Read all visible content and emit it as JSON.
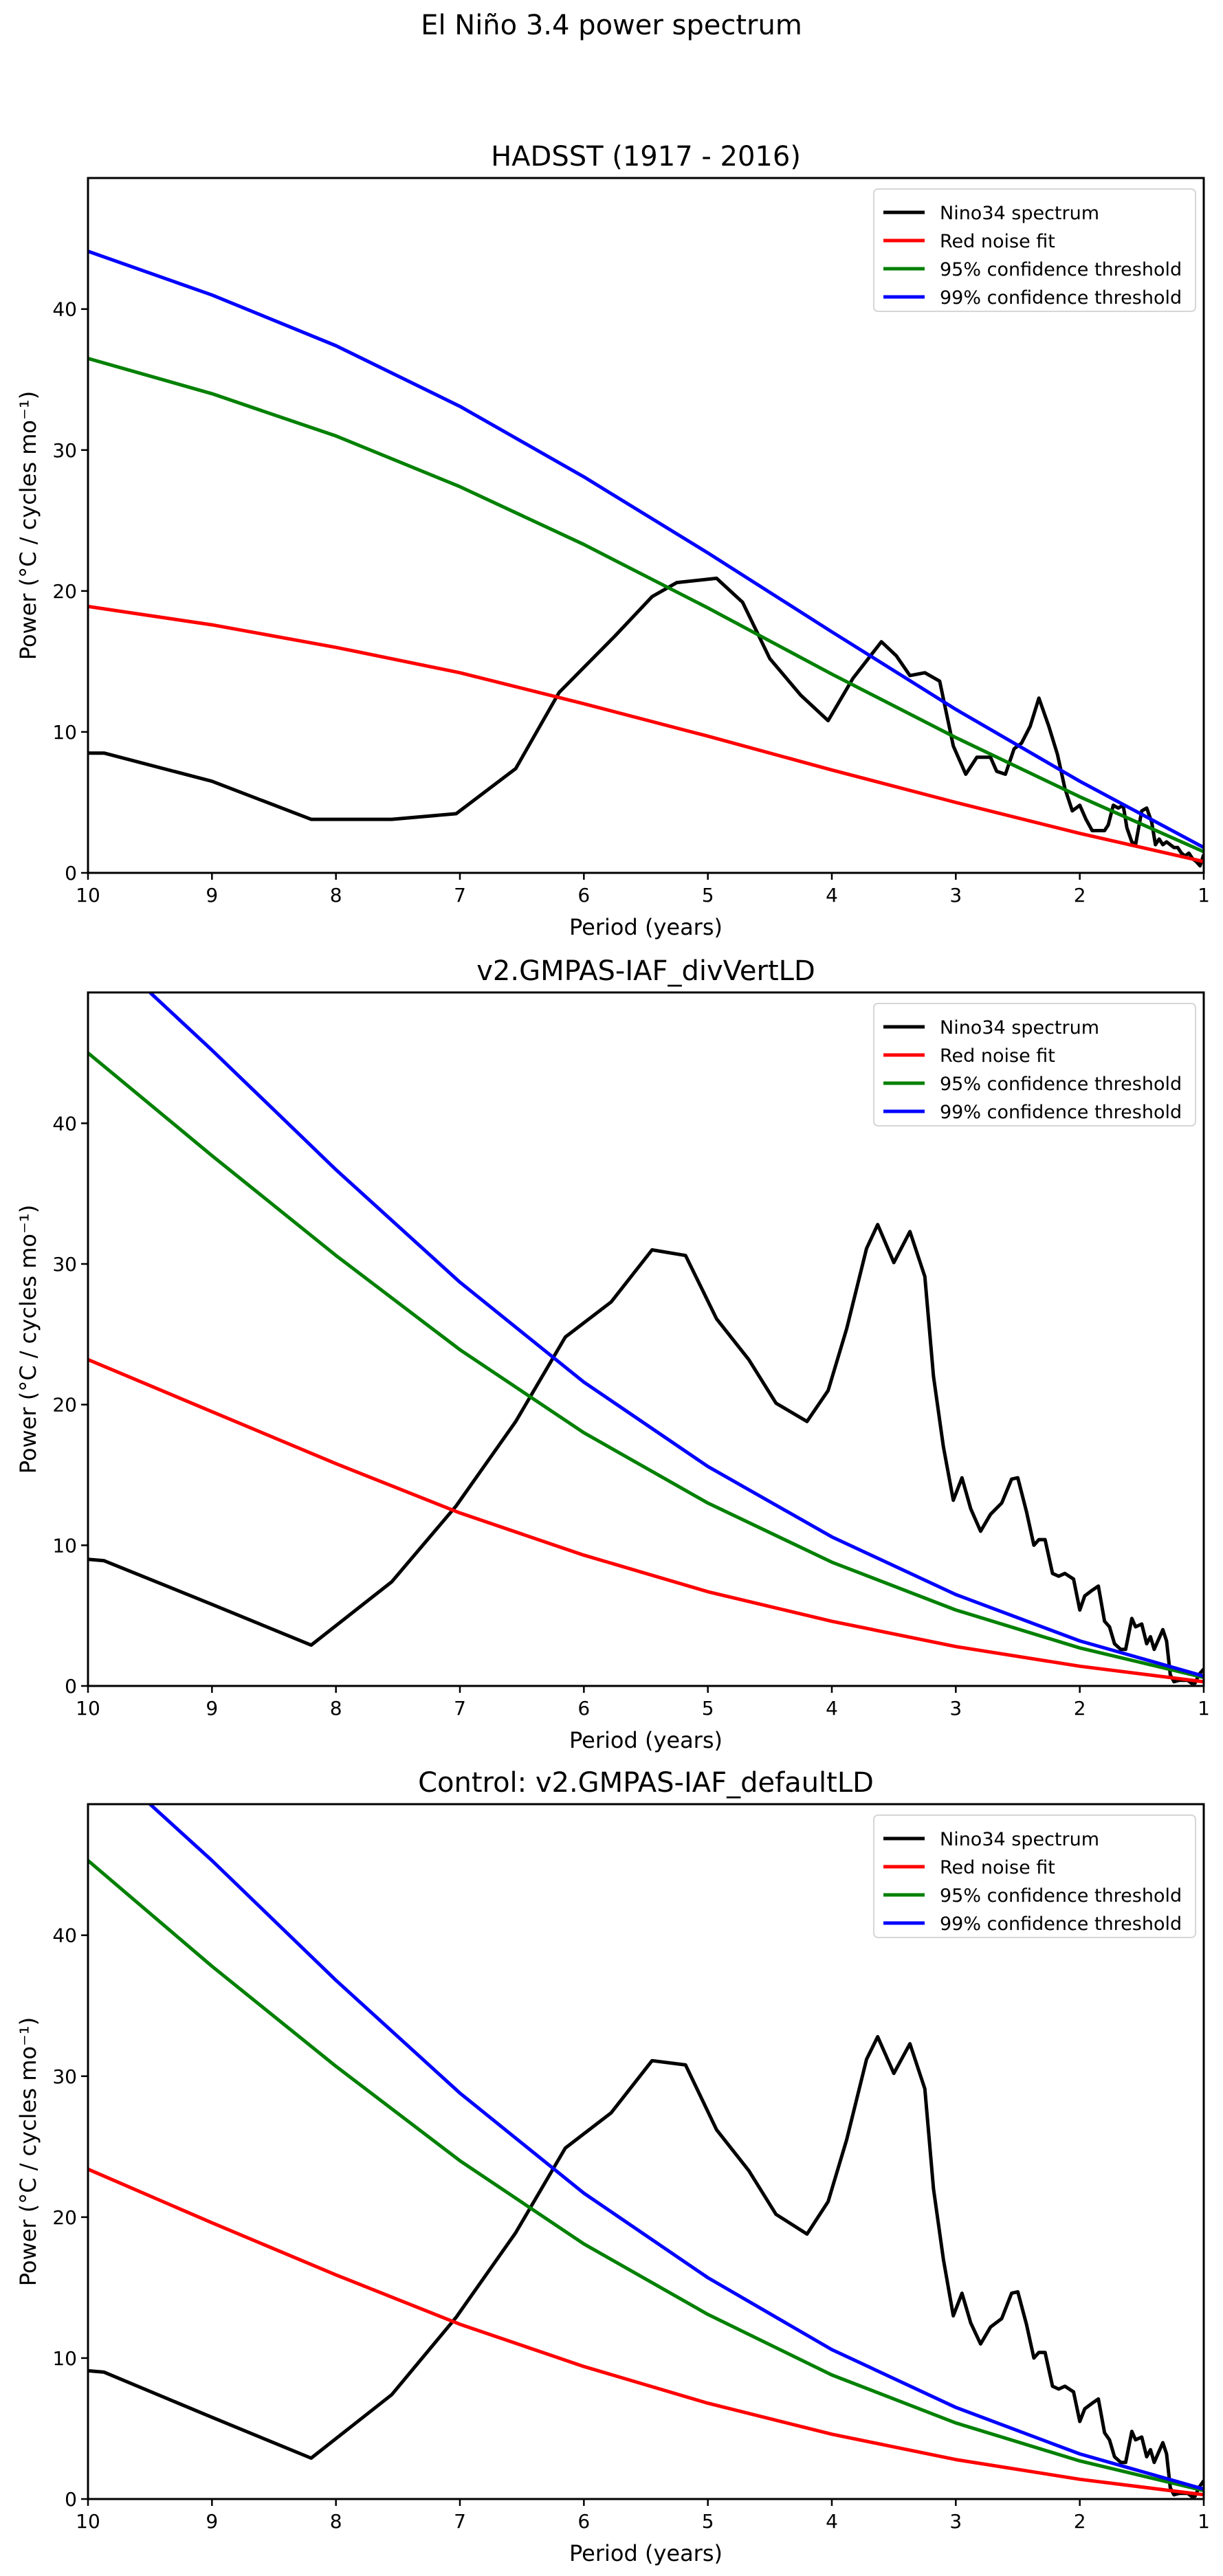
{
  "suptitle": "El Niño 3.4 power spectrum",
  "legend": {
    "entries": [
      {
        "label": "Nino34 spectrum",
        "color": "#000000"
      },
      {
        "label": "Red noise fit",
        "color": "#ff0000"
      },
      {
        "label": "95% confidence threshold",
        "color": "#008000"
      },
      {
        "label": "99% confidence threshold",
        "color": "#0000ff"
      }
    ],
    "placement": "top-right"
  },
  "chart_data": [
    {
      "type": "line",
      "title": "HADSST (1917 - 2016)",
      "xlabel": "Period (years)",
      "ylabel": "Power (°C / cycles mo⁻¹)",
      "xlim": [
        10,
        1
      ],
      "ylim": [
        0,
        49.3
      ],
      "xticks": [
        10,
        9,
        8,
        7,
        6,
        5,
        4,
        3,
        2,
        1
      ],
      "yticks": [
        0,
        10,
        20,
        30,
        40
      ],
      "grid": false,
      "series": [
        {
          "name": "Nino34 spectrum",
          "color": "#000000",
          "x": [
            10,
            9.87,
            9,
            8.2,
            7.55,
            7.03,
            6.55,
            6.2,
            5.75,
            5.45,
            5.25,
            4.93,
            4.72,
            4.5,
            4.25,
            4.03,
            3.83,
            3.6,
            3.48,
            3.37,
            3.25,
            3.13,
            3.02,
            2.92,
            2.83,
            2.72,
            2.67,
            2.6,
            2.53,
            2.47,
            2.4,
            2.33,
            2.25,
            2.18,
            2.12,
            2.06,
            2.0,
            1.95,
            1.9,
            1.85,
            1.8,
            1.77,
            1.73,
            1.69,
            1.65,
            1.62,
            1.58,
            1.55,
            1.5,
            1.46,
            1.42,
            1.39,
            1.36,
            1.33,
            1.3,
            1.27,
            1.24,
            1.21,
            1.18,
            1.15,
            1.12,
            1.09,
            1.06,
            1.03,
            1.0
          ],
          "values": [
            8.5,
            8.5,
            6.5,
            3.8,
            3.8,
            4.2,
            7.4,
            12.8,
            16.8,
            19.6,
            20.6,
            20.9,
            19.2,
            15.2,
            12.6,
            10.8,
            13.8,
            16.4,
            15.4,
            14.0,
            14.2,
            13.6,
            9.0,
            7.0,
            8.2,
            8.2,
            7.2,
            7.0,
            8.8,
            9.2,
            10.4,
            12.4,
            10.4,
            8.4,
            6.0,
            4.4,
            4.8,
            3.8,
            3.0,
            3.0,
            3.0,
            3.4,
            4.8,
            4.6,
            4.8,
            3.2,
            2.2,
            2.0,
            4.4,
            4.6,
            3.6,
            2.0,
            2.4,
            2.0,
            2.2,
            2.0,
            1.8,
            1.8,
            1.4,
            1.2,
            1.4,
            1.0,
            0.8,
            0.5,
            1.3
          ]
        },
        {
          "name": "Red noise fit",
          "color": "#ff0000",
          "x": [
            10,
            9,
            8,
            7,
            6,
            5,
            4,
            3,
            2,
            1
          ],
          "values": [
            18.9,
            17.6,
            16.0,
            14.2,
            12.0,
            9.7,
            7.3,
            5.0,
            2.8,
            0.8
          ]
        },
        {
          "name": "95% confidence threshold",
          "color": "#008000",
          "x": [
            10,
            9,
            8,
            7,
            6,
            5,
            4,
            3,
            2,
            1
          ],
          "values": [
            36.5,
            34.0,
            31.0,
            27.4,
            23.3,
            18.8,
            14.1,
            9.6,
            5.4,
            1.5
          ]
        },
        {
          "name": "99% confidence threshold",
          "color": "#0000ff",
          "x": [
            10,
            9,
            8,
            7,
            6,
            5,
            4,
            3,
            2,
            1
          ],
          "values": [
            44.1,
            41.0,
            37.4,
            33.1,
            28.1,
            22.7,
            17.1,
            11.6,
            6.5,
            1.8
          ]
        }
      ]
    },
    {
      "type": "line",
      "title": "v2.GMPAS-IAF_divVertLD",
      "xlabel": "Period (years)",
      "ylabel": "Power (°C / cycles mo⁻¹)",
      "xlim": [
        10,
        1
      ],
      "ylim": [
        0,
        49.3
      ],
      "xticks": [
        10,
        9,
        8,
        7,
        6,
        5,
        4,
        3,
        2,
        1
      ],
      "yticks": [
        0,
        10,
        20,
        30,
        40
      ],
      "grid": false,
      "series": [
        {
          "name": "Nino34 spectrum",
          "color": "#000000",
          "x": [
            10,
            9.87,
            9,
            8.2,
            7.55,
            7.03,
            6.55,
            6.15,
            5.78,
            5.45,
            5.18,
            4.93,
            4.67,
            4.45,
            4.2,
            4.03,
            3.88,
            3.72,
            3.63,
            3.5,
            3.37,
            3.25,
            3.18,
            3.1,
            3.02,
            2.95,
            2.88,
            2.8,
            2.72,
            2.63,
            2.55,
            2.5,
            2.43,
            2.37,
            2.33,
            2.28,
            2.22,
            2.17,
            2.12,
            2.05,
            2.0,
            1.96,
            1.9,
            1.85,
            1.8,
            1.76,
            1.72,
            1.67,
            1.63,
            1.58,
            1.55,
            1.5,
            1.46,
            1.43,
            1.4,
            1.37,
            1.33,
            1.3,
            1.27,
            1.24,
            1.2,
            1.17,
            1.13,
            1.1,
            1.07,
            1.04,
            1.0
          ],
          "values": [
            9.0,
            8.9,
            5.8,
            2.9,
            7.4,
            12.8,
            18.8,
            24.8,
            27.3,
            31.0,
            30.6,
            26.1,
            23.2,
            20.1,
            18.8,
            21.0,
            25.4,
            31.1,
            32.8,
            30.1,
            32.3,
            29.1,
            22.0,
            17.0,
            13.2,
            14.8,
            12.6,
            11.0,
            12.2,
            13.0,
            14.7,
            14.8,
            12.4,
            10.0,
            10.4,
            10.4,
            8.0,
            7.8,
            8.0,
            7.6,
            5.4,
            6.4,
            6.8,
            7.1,
            4.6,
            4.2,
            3.0,
            2.6,
            2.6,
            4.8,
            4.2,
            4.4,
            3.0,
            3.5,
            2.6,
            3.2,
            4.0,
            3.2,
            0.8,
            0.3,
            0.4,
            0.4,
            0.4,
            0.2,
            0.2,
            0.8,
            1.2
          ]
        },
        {
          "name": "Red noise fit",
          "color": "#ff0000",
          "x": [
            10,
            9,
            8,
            7,
            6,
            5,
            4,
            3,
            2,
            1
          ],
          "values": [
            23.2,
            19.5,
            15.8,
            12.3,
            9.3,
            6.7,
            4.6,
            2.8,
            1.4,
            0.3
          ]
        },
        {
          "name": "95% confidence threshold",
          "color": "#008000",
          "x": [
            10,
            9,
            8,
            7,
            6,
            5,
            4,
            3,
            2,
            1
          ],
          "values": [
            45.0,
            37.7,
            30.6,
            23.9,
            18.0,
            13.0,
            8.8,
            5.4,
            2.7,
            0.6
          ]
        },
        {
          "name": "99% confidence threshold",
          "color": "#0000ff",
          "x": [
            9.5,
            9,
            8,
            7,
            6,
            5,
            4,
            3,
            2,
            1
          ],
          "values": [
            49.3,
            45.2,
            36.7,
            28.7,
            21.6,
            15.6,
            10.6,
            6.5,
            3.2,
            0.7
          ]
        }
      ]
    },
    {
      "type": "line",
      "title": "Control: v2.GMPAS-IAF_defaultLD",
      "xlabel": "Period (years)",
      "ylabel": "Power (°C / cycles mo⁻¹)",
      "xlim": [
        10,
        1
      ],
      "ylim": [
        0,
        49.3
      ],
      "xticks": [
        10,
        9,
        8,
        7,
        6,
        5,
        4,
        3,
        2,
        1
      ],
      "yticks": [
        0,
        10,
        20,
        30,
        40
      ],
      "grid": false,
      "series": [
        {
          "name": "Nino34 spectrum",
          "color": "#000000",
          "x": [
            10,
            9.87,
            9,
            8.2,
            7.55,
            7.03,
            6.55,
            6.15,
            5.78,
            5.45,
            5.18,
            4.93,
            4.67,
            4.45,
            4.2,
            4.03,
            3.88,
            3.72,
            3.63,
            3.5,
            3.37,
            3.25,
            3.18,
            3.1,
            3.02,
            2.95,
            2.88,
            2.8,
            2.72,
            2.63,
            2.55,
            2.5,
            2.43,
            2.37,
            2.33,
            2.28,
            2.22,
            2.17,
            2.12,
            2.05,
            2.0,
            1.96,
            1.9,
            1.85,
            1.8,
            1.76,
            1.72,
            1.67,
            1.63,
            1.58,
            1.55,
            1.5,
            1.46,
            1.43,
            1.4,
            1.37,
            1.33,
            1.3,
            1.27,
            1.24,
            1.2,
            1.17,
            1.13,
            1.1,
            1.07,
            1.04,
            1.0
          ],
          "values": [
            9.1,
            9.0,
            5.8,
            2.9,
            7.4,
            12.9,
            18.9,
            24.9,
            27.4,
            31.1,
            30.8,
            26.2,
            23.3,
            20.2,
            18.8,
            21.1,
            25.5,
            31.2,
            32.8,
            30.2,
            32.3,
            29.1,
            22.0,
            17.0,
            13.0,
            14.6,
            12.5,
            11.0,
            12.2,
            12.8,
            14.6,
            14.7,
            12.4,
            10.0,
            10.4,
            10.4,
            8.0,
            7.8,
            8.0,
            7.6,
            5.5,
            6.4,
            6.8,
            7.1,
            4.7,
            4.2,
            3.0,
            2.6,
            2.6,
            4.8,
            4.2,
            4.4,
            3.0,
            3.5,
            2.6,
            3.2,
            4.0,
            3.2,
            0.8,
            0.3,
            0.4,
            0.4,
            0.4,
            0.2,
            0.2,
            0.8,
            1.3
          ]
        },
        {
          "name": "Red noise fit",
          "color": "#ff0000",
          "x": [
            10,
            9,
            8,
            7,
            6,
            5,
            4,
            3,
            2,
            1
          ],
          "values": [
            23.4,
            19.6,
            15.9,
            12.4,
            9.4,
            6.8,
            4.6,
            2.8,
            1.4,
            0.3
          ]
        },
        {
          "name": "95% confidence threshold",
          "color": "#008000",
          "x": [
            10,
            9,
            8,
            7,
            6,
            5,
            4,
            3,
            2,
            1
          ],
          "values": [
            45.3,
            37.8,
            30.7,
            24.0,
            18.1,
            13.1,
            8.8,
            5.4,
            2.7,
            0.6
          ]
        },
        {
          "name": "99% confidence threshold",
          "color": "#0000ff",
          "x": [
            9.5,
            9,
            8,
            7,
            6,
            5,
            4,
            3,
            2,
            1
          ],
          "values": [
            49.3,
            45.3,
            36.8,
            28.8,
            21.7,
            15.7,
            10.6,
            6.5,
            3.2,
            0.7
          ]
        }
      ]
    }
  ]
}
